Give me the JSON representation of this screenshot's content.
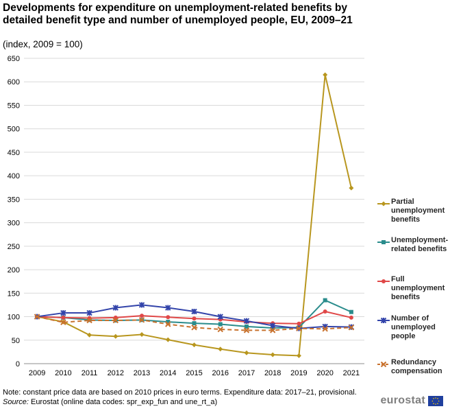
{
  "chart_data": {
    "type": "line",
    "title": "Developments for expenditure on unemployment-related benefits by detailed benefit type and number of unemployed people, EU, 2009–21",
    "subtitle": "(index, 2009 = 100)",
    "xlabel": "",
    "ylabel": "",
    "ylim": [
      0,
      650
    ],
    "yticks": [
      0,
      50,
      100,
      150,
      200,
      250,
      300,
      350,
      400,
      450,
      500,
      550,
      600,
      650
    ],
    "x": [
      "2009",
      "2010",
      "2011",
      "2012",
      "2013",
      "2014",
      "2015",
      "2016",
      "2017",
      "2018",
      "2019",
      "2020",
      "2021"
    ],
    "grid": true,
    "legend_position": "right",
    "series": [
      {
        "name": "Partial unemployment benefits",
        "label_lines": [
          "Partial",
          "unemployment",
          "benefits"
        ],
        "color": "#b8961e",
        "marker": "diamond",
        "dash": "solid",
        "values": [
          100,
          89,
          61,
          58,
          62,
          51,
          40,
          31,
          23,
          19,
          17,
          615,
          374
        ]
      },
      {
        "name": "Unemployment-related benefits",
        "label_lines": [
          "Unemployment-",
          "related benefits"
        ],
        "color": "#2a8c8c",
        "marker": "square",
        "dash": "solid",
        "values": [
          100,
          98,
          93,
          92,
          93,
          89,
          86,
          84,
          79,
          76,
          77,
          135,
          110
        ]
      },
      {
        "name": "Full unemployment benefits",
        "label_lines": [
          "Full",
          "unemployment",
          "benefits"
        ],
        "color": "#e04848",
        "marker": "circle",
        "dash": "solid",
        "values": [
          100,
          98,
          97,
          98,
          102,
          99,
          96,
          94,
          89,
          86,
          85,
          111,
          98
        ]
      },
      {
        "name": "Number of unemployed people",
        "label_lines": [
          "Number of",
          "unemployed",
          "people"
        ],
        "color": "#3344aa",
        "marker": "star",
        "dash": "solid",
        "values": [
          100,
          108,
          108,
          119,
          125,
          119,
          111,
          100,
          91,
          81,
          75,
          79,
          78
        ]
      },
      {
        "name": "Redundancy compensation",
        "label_lines": [
          "Redundancy",
          "compensation"
        ],
        "color": "#c8722e",
        "marker": "x",
        "dash": "dashed",
        "values": [
          100,
          88,
          92,
          92,
          93,
          84,
          77,
          73,
          71,
          71,
          75,
          74,
          77
        ]
      }
    ]
  },
  "footer": {
    "note": "Note: constant price data are based on 2010 prices in euro terms. Expenditure data: 2017–21, provisional.",
    "source_label": "Source:",
    "source_text": " Eurostat (online data codes: spr_exp_fun and une_rt_a)"
  },
  "branding": {
    "logo_text": "eurostat"
  }
}
